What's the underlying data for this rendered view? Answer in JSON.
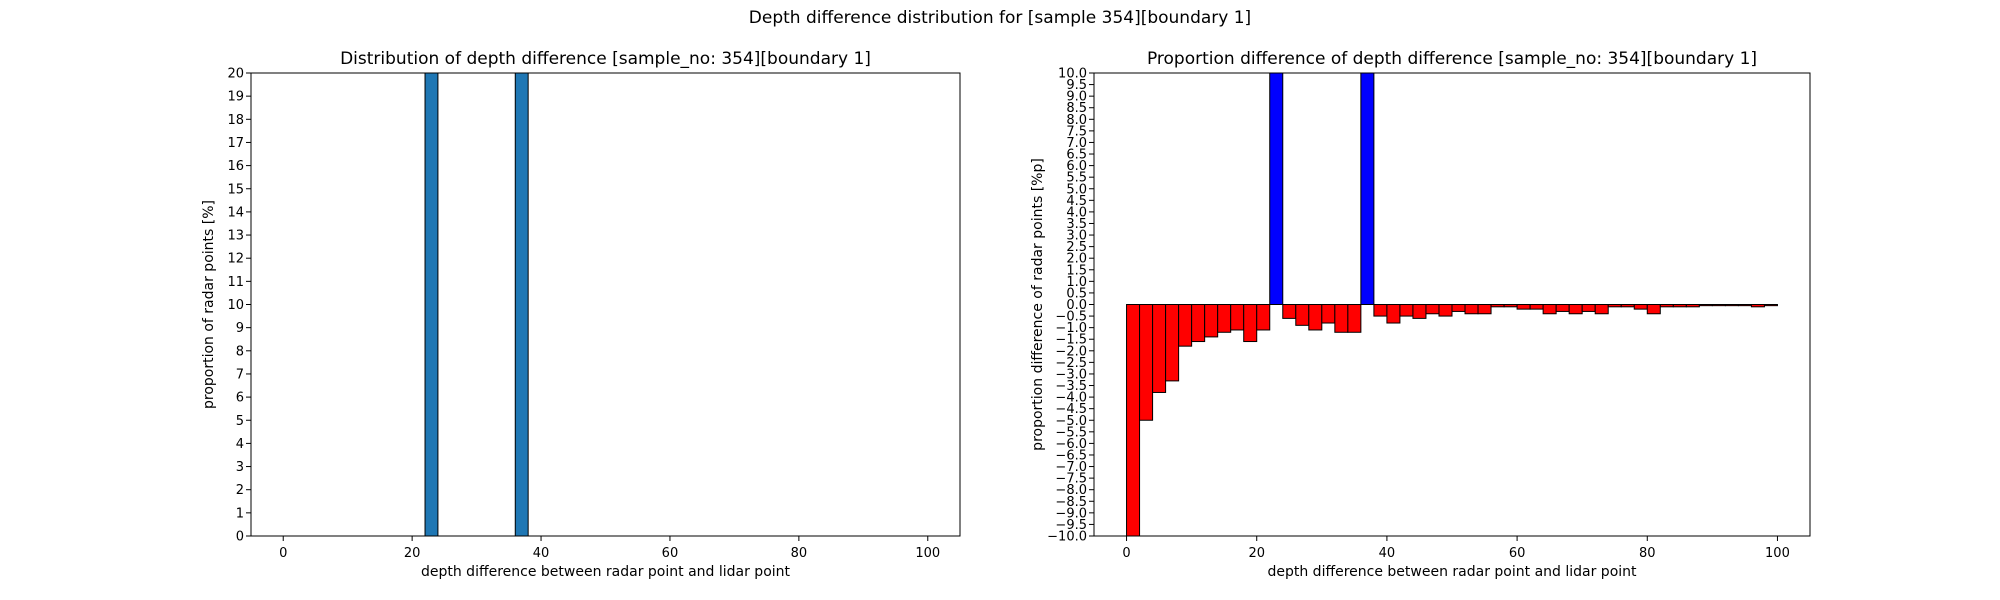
{
  "figure_title": "Depth difference distribution for [sample 354][boundary 1]",
  "colors": {
    "left_bar": "#1f77b4",
    "positive": "#0000ff",
    "negative": "#ff0000",
    "edge": "#000000"
  },
  "chart_data": [
    {
      "type": "bar",
      "title": "Distribution of depth difference [sample_no: 354][boundary 1]",
      "xlabel": "depth difference between radar point and lidar point",
      "ylabel": "proportion of radar points [%]",
      "xlim": [
        -5,
        105
      ],
      "ylim": [
        0,
        20
      ],
      "xticks": [
        0,
        20,
        40,
        60,
        80,
        100
      ],
      "yticks": [
        0,
        1,
        2,
        3,
        4,
        5,
        6,
        7,
        8,
        9,
        10,
        11,
        12,
        13,
        14,
        15,
        16,
        17,
        18,
        19,
        20
      ],
      "bin_width": 2,
      "bars": [
        {
          "x": 22,
          "value": 20
        },
        {
          "x": 36,
          "value": 20
        }
      ]
    },
    {
      "type": "bar",
      "title": "Proportion difference of depth difference [sample_no: 354][boundary 1]",
      "xlabel": "depth difference between radar point and lidar point",
      "ylabel": "proportion difference of radar points [%p]",
      "xlim": [
        -5,
        105
      ],
      "ylim": [
        -10,
        10
      ],
      "xticks": [
        0,
        20,
        40,
        60,
        80,
        100
      ],
      "yticks": [
        -10.0,
        -9.5,
        -9.0,
        -8.5,
        -8.0,
        -7.5,
        -7.0,
        -6.5,
        -6.0,
        -5.5,
        -5.0,
        -4.5,
        -4.0,
        -3.5,
        -3.0,
        -2.5,
        -2.0,
        -1.5,
        -1.0,
        -0.5,
        0.0,
        0.5,
        1.0,
        1.5,
        2.0,
        2.5,
        3.0,
        3.5,
        4.0,
        4.5,
        5.0,
        5.5,
        6.0,
        6.5,
        7.0,
        7.5,
        8.0,
        8.5,
        9.0,
        9.5,
        10.0
      ],
      "bin_width": 2,
      "bin_starts": [
        0,
        2,
        4,
        6,
        8,
        10,
        12,
        14,
        16,
        18,
        20,
        22,
        24,
        26,
        28,
        30,
        32,
        34,
        36,
        38,
        40,
        42,
        44,
        46,
        48,
        50,
        52,
        54,
        56,
        58,
        60,
        62,
        64,
        66,
        68,
        70,
        72,
        74,
        76,
        78,
        80,
        82,
        84,
        86,
        88,
        90,
        92,
        94,
        96,
        98
      ],
      "values": [
        -10,
        -5.0,
        -3.8,
        -3.3,
        -1.8,
        -1.6,
        -1.4,
        -1.2,
        -1.1,
        -1.6,
        -1.1,
        10,
        -0.6,
        -0.9,
        -1.1,
        -0.8,
        -1.2,
        -1.2,
        10,
        -0.5,
        -0.8,
        -0.5,
        -0.6,
        -0.4,
        -0.5,
        -0.3,
        -0.4,
        -0.4,
        -0.1,
        -0.1,
        -0.2,
        -0.2,
        -0.4,
        -0.3,
        -0.4,
        -0.3,
        -0.4,
        -0.1,
        -0.1,
        -0.2,
        -0.4,
        -0.1,
        -0.1,
        -0.1,
        -0.05,
        -0.05,
        -0.05,
        -0.05,
        -0.1,
        -0.05
      ]
    }
  ]
}
